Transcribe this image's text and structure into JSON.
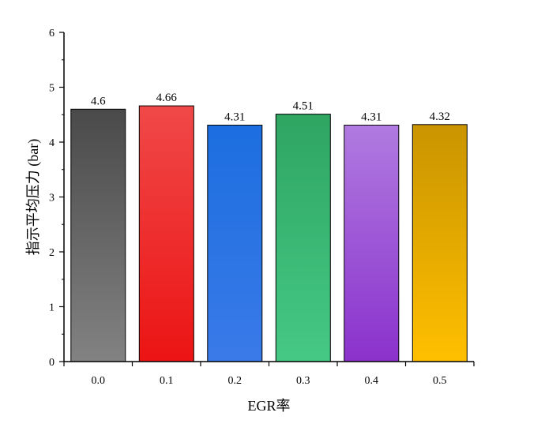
{
  "chart_data": {
    "type": "bar",
    "title": "",
    "xlabel": "EGR率",
    "ylabel": "指示平均压力 (bar)",
    "categories": [
      "0.0",
      "0.1",
      "0.2",
      "0.3",
      "0.4",
      "0.5"
    ],
    "values": [
      4.6,
      4.66,
      4.31,
      4.51,
      4.31,
      4.32
    ],
    "data_labels": [
      "4.6",
      "4.66",
      "4.31",
      "4.51",
      "4.31",
      "4.32"
    ],
    "ylim": [
      0,
      6
    ],
    "yticks": [
      "0",
      "1",
      "2",
      "3",
      "4",
      "5",
      "6"
    ],
    "grid": false,
    "legend": "none",
    "bar_colors": [
      [
        "#4a4a4a",
        "#828282"
      ],
      [
        "#f04848",
        "#ec1414"
      ],
      [
        "#1c6ee0",
        "#3a7ae8"
      ],
      [
        "#2fa562",
        "#45c985"
      ],
      [
        "#b07ae0",
        "#8a32cc"
      ],
      [
        "#c99400",
        "#ffbf00"
      ]
    ]
  }
}
